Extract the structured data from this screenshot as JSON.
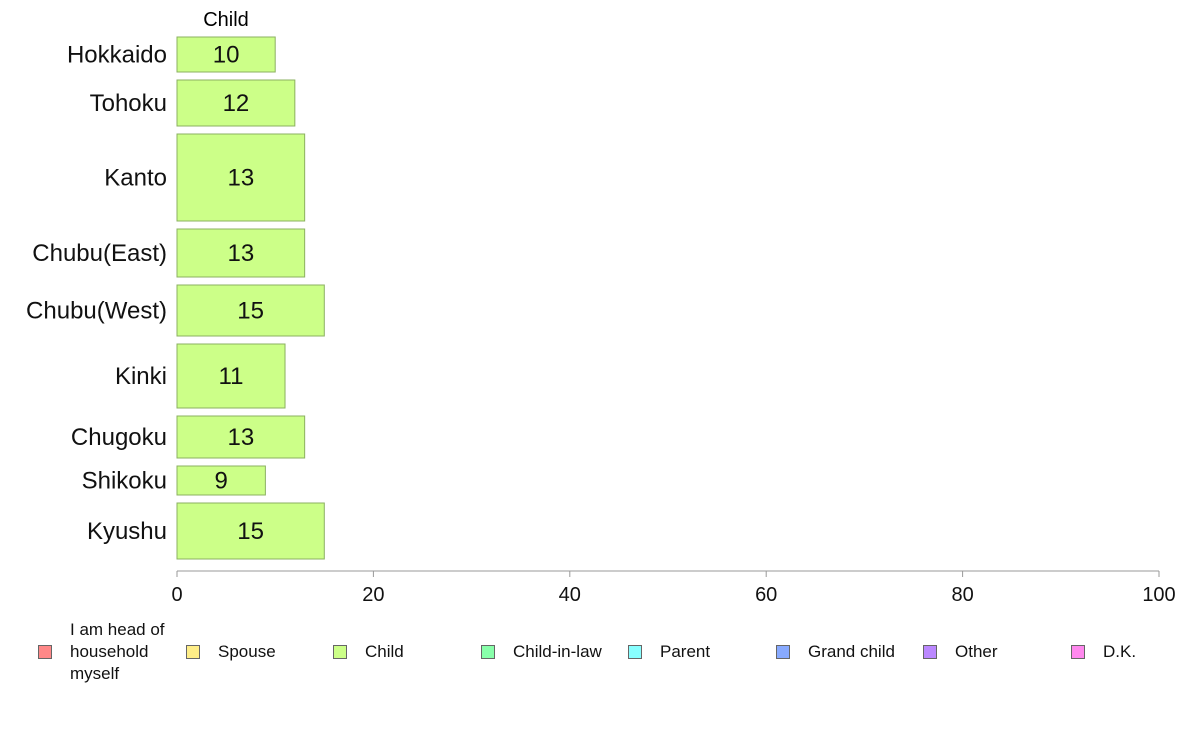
{
  "chart_data": {
    "type": "bar",
    "orientation": "horizontal",
    "column_header": "Child",
    "categories": [
      "Hokkaido",
      "Tohoku",
      "Kanto",
      "Chubu(East)",
      "Chubu(West)",
      "Kinki",
      "Chugoku",
      "Shikoku",
      "Kyushu"
    ],
    "values": [
      10,
      12,
      13,
      13,
      15,
      11,
      13,
      9,
      15
    ],
    "xlim": [
      0,
      100
    ],
    "xticks": [
      0,
      20,
      40,
      60,
      80,
      100
    ],
    "grid": false,
    "bar_color": "#ccff88",
    "bar_edge_color": "#8bb060",
    "axis_color": "#999999",
    "legend": {
      "placement": "bottom",
      "items": [
        {
          "label": "I am head of household myself",
          "color": "#ff8888"
        },
        {
          "label": "Spouse",
          "color": "#ffee88"
        },
        {
          "label": "Child",
          "color": "#ccff88"
        },
        {
          "label": "Child-in-law",
          "color": "#88ffaa"
        },
        {
          "label": "Parent",
          "color": "#88ffff"
        },
        {
          "label": "Grand child",
          "color": "#88aaff"
        },
        {
          "label": "Other",
          "color": "#bb88ff"
        },
        {
          "label": "D.K.",
          "color": "#ff88ee"
        }
      ]
    }
  }
}
